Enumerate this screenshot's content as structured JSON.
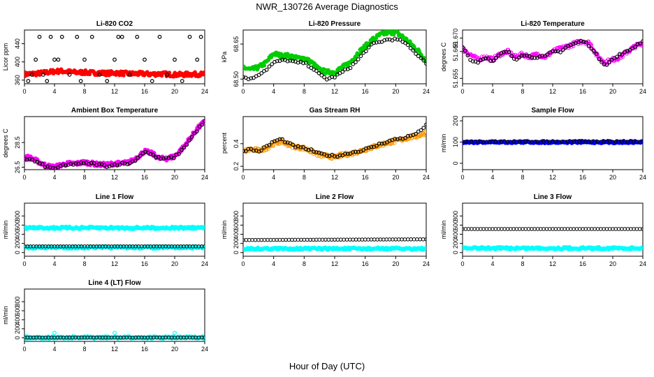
{
  "figure": {
    "title": "NWR_130726  Average Diagnostics",
    "xlabel": "Hour of Day (UTC)"
  },
  "chart_data": [
    {
      "type": "scatter",
      "title": "Li-820 CO2",
      "xlabel": "",
      "ylabel": "Licor ppm",
      "xlim": [
        0,
        24
      ],
      "ylim": [
        352,
        470
      ],
      "xticks": [
        "0",
        "4",
        "8",
        "12",
        "16",
        "20",
        "24"
      ],
      "yticks": [
        "360",
        "400",
        "440"
      ],
      "series": [
        {
          "color": "#ff0000",
          "marker": "dot-dense",
          "x": [
            0,
            1,
            2,
            3,
            4,
            5,
            6,
            7,
            8,
            9,
            10,
            11,
            12,
            13,
            14,
            15,
            16,
            17,
            18,
            19,
            20,
            21,
            22,
            23,
            24
          ],
          "y": [
            373,
            374,
            375,
            377,
            379,
            380,
            378,
            377,
            377,
            376,
            376,
            375,
            376,
            375,
            374,
            374,
            374,
            373,
            374,
            373,
            372,
            372,
            373,
            373,
            373
          ]
        },
        {
          "color": "#000000",
          "marker": "circle",
          "x": [
            0.5,
            1,
            1.5,
            2,
            2.5,
            3,
            3.5,
            4,
            4.5,
            5,
            6,
            7,
            7.5,
            8,
            9,
            10,
            11,
            12,
            12.5,
            13,
            14,
            15,
            16,
            17,
            18,
            19,
            20,
            21,
            22,
            23,
            23.5
          ],
          "y": [
            358,
            372,
            405,
            455,
            372,
            358,
            455,
            405,
            405,
            455,
            372,
            455,
            358,
            405,
            455,
            372,
            358,
            405,
            455,
            455,
            372,
            455,
            405,
            358,
            455,
            372,
            405,
            358,
            455,
            405,
            455
          ]
        }
      ]
    },
    {
      "type": "scatter",
      "title": "Li-820 Pressure",
      "xlabel": "",
      "ylabel": "kPa",
      "xlim": [
        0,
        24
      ],
      "ylim": [
        68.48,
        68.71
      ],
      "xticks": [
        "0",
        "4",
        "8",
        "12",
        "16",
        "20",
        "24"
      ],
      "yticks": [
        "68.50",
        "68.65"
      ],
      "series": [
        {
          "color": "#00cc00",
          "marker": "dot-dense",
          "x": [
            0,
            1,
            2,
            3,
            4,
            5,
            6,
            7,
            8,
            9,
            10,
            11,
            12,
            13,
            14,
            15,
            16,
            17,
            18,
            19,
            20,
            21,
            22,
            23,
            24
          ],
          "y": [
            68.55,
            68.54,
            68.55,
            68.57,
            68.61,
            68.6,
            68.6,
            68.59,
            68.59,
            68.57,
            68.54,
            68.53,
            68.53,
            68.55,
            68.57,
            68.61,
            68.64,
            68.67,
            68.69,
            68.7,
            68.7,
            68.68,
            68.65,
            68.62,
            68.58
          ]
        },
        {
          "color": "#000000",
          "marker": "circle",
          "x": [
            0,
            1,
            2,
            3,
            4,
            5,
            6,
            7,
            8,
            9,
            10,
            11,
            12,
            13,
            14,
            15,
            16,
            17,
            18,
            19,
            20,
            21,
            22,
            23,
            24
          ],
          "y": [
            68.51,
            68.5,
            68.52,
            68.54,
            68.57,
            68.58,
            68.58,
            68.57,
            68.57,
            68.55,
            68.52,
            68.5,
            68.51,
            68.53,
            68.55,
            68.58,
            68.62,
            68.65,
            68.66,
            68.67,
            68.67,
            68.66,
            68.63,
            68.6,
            68.57
          ]
        }
      ]
    },
    {
      "type": "scatter",
      "title": "Li-820 Temperature",
      "xlabel": "",
      "ylabel": "degrees C",
      "xlim": [
        0,
        24
      ],
      "ylim": [
        51.653,
        51.673
      ],
      "xticks": [
        "0",
        "4",
        "8",
        "12",
        "16",
        "20",
        "24"
      ],
      "yticks": [
        "51.655",
        "51.665",
        "51.670"
      ],
      "series": [
        {
          "color": "#ff00ff",
          "marker": "circle-dense",
          "x": [
            0,
            1,
            2,
            3,
            4,
            5,
            6,
            7,
            8,
            9,
            10,
            11,
            12,
            13,
            14,
            15,
            16,
            17,
            18,
            19,
            20,
            21,
            22,
            23,
            24
          ],
          "y": [
            51.666,
            51.664,
            51.662,
            51.663,
            51.662,
            51.664,
            51.665,
            51.663,
            51.664,
            51.663,
            51.664,
            51.663,
            51.665,
            51.666,
            51.667,
            51.668,
            51.669,
            51.668,
            51.663,
            51.661,
            51.662,
            51.663,
            51.665,
            51.667,
            51.668
          ]
        },
        {
          "color": "#000000",
          "marker": "circle",
          "x": [
            0,
            1,
            2,
            3,
            4,
            5,
            6,
            7,
            8,
            9,
            10,
            11,
            12,
            13,
            14,
            15,
            16,
            17,
            18,
            19,
            20,
            21,
            22,
            23,
            24
          ],
          "y": [
            51.667,
            51.662,
            51.661,
            51.663,
            51.661,
            51.664,
            51.665,
            51.662,
            51.664,
            51.663,
            51.663,
            51.663,
            51.665,
            51.665,
            51.667,
            51.668,
            51.669,
            51.667,
            51.663,
            51.66,
            51.662,
            51.664,
            51.665,
            51.667,
            51.669
          ]
        }
      ]
    },
    {
      "type": "scatter",
      "title": "Ambient Box Temperature",
      "xlabel": "",
      "ylabel": "degrees C",
      "xlim": [
        0,
        24
      ],
      "ylim": [
        26.3,
        30.6
      ],
      "xticks": [
        "0",
        "4",
        "8",
        "12",
        "16",
        "20",
        "24"
      ],
      "yticks": [
        "26.5",
        "28.5"
      ],
      "series": [
        {
          "color": "#ff00ff",
          "marker": "dot-dense",
          "x": [
            0,
            0.5,
            1,
            2,
            3,
            4,
            5,
            6,
            7,
            8,
            9,
            10,
            11,
            12,
            13,
            14,
            15,
            16,
            17,
            18,
            19,
            20,
            21,
            22,
            23,
            24
          ],
          "y": [
            27.2,
            27.3,
            27.2,
            26.9,
            26.6,
            26.5,
            26.7,
            26.8,
            26.8,
            26.9,
            26.8,
            26.7,
            26.7,
            26.8,
            26.8,
            26.9,
            27.3,
            27.8,
            27.6,
            27.2,
            27.2,
            27.4,
            28.0,
            28.8,
            29.6,
            30.2
          ]
        },
        {
          "color": "#000000",
          "marker": "circle",
          "x": [
            0,
            1,
            2,
            3,
            4,
            5,
            6,
            7,
            8,
            9,
            10,
            11,
            12,
            13,
            14,
            15,
            16,
            17,
            18,
            19,
            20,
            21,
            22,
            23,
            24
          ],
          "y": [
            27.2,
            27.1,
            26.8,
            26.5,
            26.4,
            26.6,
            26.7,
            26.8,
            26.8,
            26.8,
            26.7,
            26.6,
            26.7,
            26.8,
            26.8,
            27.2,
            27.8,
            27.5,
            27.2,
            27.2,
            27.3,
            27.9,
            28.7,
            29.5,
            30.2
          ]
        }
      ]
    },
    {
      "type": "scatter",
      "title": "Gas Stream RH",
      "xlabel": "",
      "ylabel": "percent",
      "xlim": [
        0,
        24
      ],
      "ylim": [
        0.17,
        0.64
      ],
      "xticks": [
        "0",
        "4",
        "8",
        "12",
        "16",
        "20",
        "24"
      ],
      "yticks": [
        "0.2",
        "0.4"
      ],
      "series": [
        {
          "color": "#ff9900",
          "marker": "circle-dense",
          "x": [
            0,
            1,
            2,
            3,
            4,
            5,
            6,
            7,
            8,
            9,
            10,
            11,
            12,
            13,
            14,
            15,
            16,
            17,
            18,
            19,
            20,
            21,
            22,
            23,
            24
          ],
          "y": [
            0.33,
            0.35,
            0.34,
            0.36,
            0.4,
            0.42,
            0.39,
            0.37,
            0.36,
            0.33,
            0.3,
            0.29,
            0.28,
            0.3,
            0.31,
            0.33,
            0.35,
            0.37,
            0.39,
            0.41,
            0.42,
            0.44,
            0.46,
            0.47,
            0.5
          ]
        },
        {
          "color": "#000000",
          "marker": "circle",
          "x": [
            0,
            1,
            2,
            3,
            4,
            5,
            6,
            7,
            8,
            9,
            10,
            11,
            12,
            13,
            14,
            15,
            16,
            17,
            18,
            19,
            20,
            21,
            22,
            23,
            24
          ],
          "y": [
            0.34,
            0.35,
            0.33,
            0.37,
            0.42,
            0.44,
            0.4,
            0.37,
            0.36,
            0.34,
            0.31,
            0.3,
            0.29,
            0.3,
            0.32,
            0.33,
            0.35,
            0.37,
            0.4,
            0.42,
            0.44,
            0.45,
            0.47,
            0.5,
            0.57
          ]
        }
      ]
    },
    {
      "type": "scatter",
      "title": "Sample Flow",
      "xlabel": "",
      "ylabel": "ml/min",
      "xlim": [
        0,
        24
      ],
      "ylim": [
        -30,
        220
      ],
      "xticks": [
        "0",
        "4",
        "8",
        "12",
        "16",
        "20",
        "24"
      ],
      "yticks": [
        "0",
        "100",
        "200"
      ],
      "series": [
        {
          "color": "#0000ff",
          "marker": "circle-dense",
          "x": [
            0,
            24
          ],
          "y": [
            100,
            100
          ],
          "constant": true
        },
        {
          "color": "#000000",
          "marker": "circle",
          "x": [
            0,
            24
          ],
          "y": [
            101,
            101
          ],
          "constant": true
        }
      ]
    },
    {
      "type": "scatter",
      "title": "Line 1 Flow",
      "xlabel": "",
      "ylabel": "ml/min",
      "xlim": [
        0,
        24
      ],
      "ylim": [
        -80,
        1080
      ],
      "xticks": [
        "0",
        "4",
        "8",
        "12",
        "16",
        "20",
        "24"
      ],
      "yticks": [
        "0",
        "200",
        "400",
        "600",
        "800"
      ],
      "series": [
        {
          "color": "#00ffff",
          "marker": "dot-dense",
          "x": [
            0,
            24
          ],
          "y": [
            540,
            540
          ],
          "constant": true
        },
        {
          "color": "#00ffff",
          "marker": "dot-dense",
          "x": [
            0,
            24
          ],
          "y": [
            110,
            110
          ],
          "constant": true
        },
        {
          "color": "#000000",
          "marker": "circle",
          "x": [
            0,
            24
          ],
          "y": [
            135,
            135
          ],
          "constant": true
        }
      ]
    },
    {
      "type": "scatter",
      "title": "Line 2 Flow",
      "xlabel": "",
      "ylabel": "ml/min",
      "xlim": [
        0,
        24
      ],
      "ylim": [
        -80,
        1080
      ],
      "xticks": [
        "0",
        "4",
        "8",
        "12",
        "16",
        "20",
        "24"
      ],
      "yticks": [
        "0",
        "200",
        "400",
        "600",
        "800"
      ],
      "series": [
        {
          "color": "#00ffff",
          "marker": "dot-dense",
          "x": [
            0,
            24
          ],
          "y": [
            85,
            85
          ],
          "constant": true
        },
        {
          "color": "#000000",
          "marker": "circle",
          "x": [
            0,
            24
          ],
          "y": [
            275,
            290
          ],
          "constant": true
        }
      ]
    },
    {
      "type": "scatter",
      "title": "Line 3 Flow",
      "xlabel": "",
      "ylabel": "ml/min",
      "xlim": [
        0,
        24
      ],
      "ylim": [
        -80,
        1080
      ],
      "xticks": [
        "0",
        "4",
        "8",
        "12",
        "16",
        "20",
        "24"
      ],
      "yticks": [
        "0",
        "200",
        "400",
        "600",
        "800"
      ],
      "series": [
        {
          "color": "#00ffff",
          "marker": "dot-dense",
          "x": [
            0,
            24
          ],
          "y": [
            95,
            95
          ],
          "constant": true
        },
        {
          "color": "#000000",
          "marker": "circle",
          "x": [
            0,
            24
          ],
          "y": [
            515,
            515
          ],
          "constant": true
        }
      ]
    },
    {
      "type": "scatter",
      "title": "Line 4 (LT) Flow",
      "xlabel": "",
      "ylabel": "ml/min",
      "xlim": [
        0,
        24
      ],
      "ylim": [
        -80,
        1080
      ],
      "xticks": [
        "0",
        "4",
        "8",
        "12",
        "16",
        "20",
        "24"
      ],
      "yticks": [
        "0",
        "200",
        "400",
        "600",
        "800"
      ],
      "series": [
        {
          "color": "#00ffff",
          "marker": "dot-dense",
          "x": [
            0,
            24
          ],
          "y": [
            5,
            5
          ],
          "constant": true
        },
        {
          "color": "#00ffff",
          "marker": "circle",
          "x": [
            4,
            12,
            20
          ],
          "y": [
            110,
            110,
            110
          ]
        },
        {
          "color": "#000000",
          "marker": "circle",
          "x": [
            0,
            24
          ],
          "y": [
            5,
            5
          ],
          "constant": true
        }
      ]
    }
  ]
}
